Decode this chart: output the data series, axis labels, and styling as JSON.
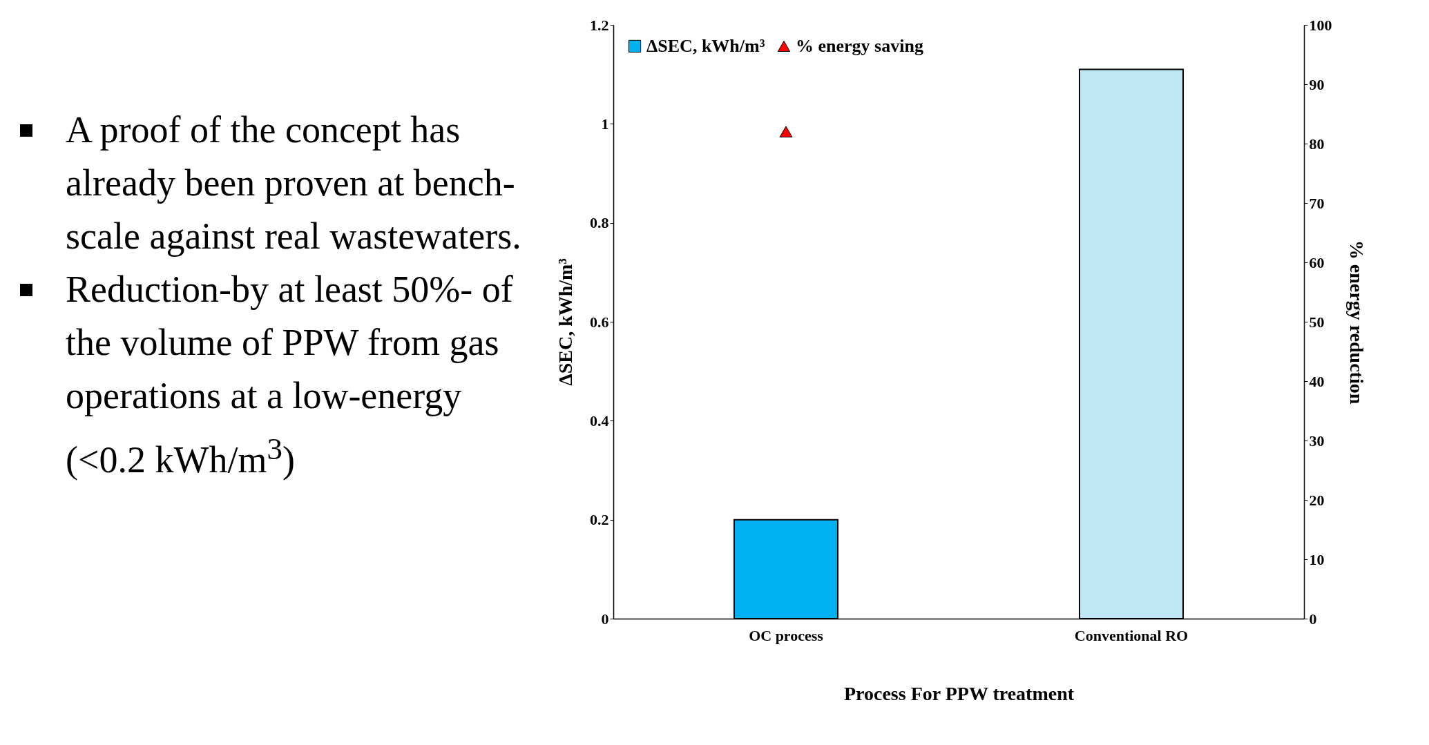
{
  "chart_data": {
    "type": "bar",
    "categories": [
      "OC process",
      "Conventional RO"
    ],
    "xlabel": "Process For PPW treatment",
    "ylabel": "ΔSEC, kWh/m³",
    "y2label": "% energy reduction",
    "ylim": [
      0,
      1.2
    ],
    "yticks": [
      0,
      0.2,
      0.4,
      0.6,
      0.8,
      1,
      1.2
    ],
    "y2lim": [
      0,
      100
    ],
    "y2ticks": [
      0,
      10,
      20,
      30,
      40,
      50,
      60,
      70,
      80,
      90,
      100
    ],
    "legend": "top left",
    "grid": false,
    "series": [
      {
        "name": "ΔSEC, kWh/m³",
        "color": "#00b0f0",
        "colors": [
          "#00b0f0",
          "#bfe6f5"
        ],
        "values": [
          0.2,
          1.11
        ]
      },
      {
        "name": "% energy saving",
        "type": "scatter",
        "axis": "y2",
        "marker": "triangle",
        "color": "#ff0000",
        "x": [
          "OC process"
        ],
        "values": [
          82
        ]
      }
    ],
    "annotations": [
      "A proof of the concept has already been proven at bench-scale against real wastewaters.",
      "Reduction-by at least 50%- of the volume of PPW from gas operations at a low-energy (<0.2 kWh/m$^{3}$)"
    ]
  }
}
